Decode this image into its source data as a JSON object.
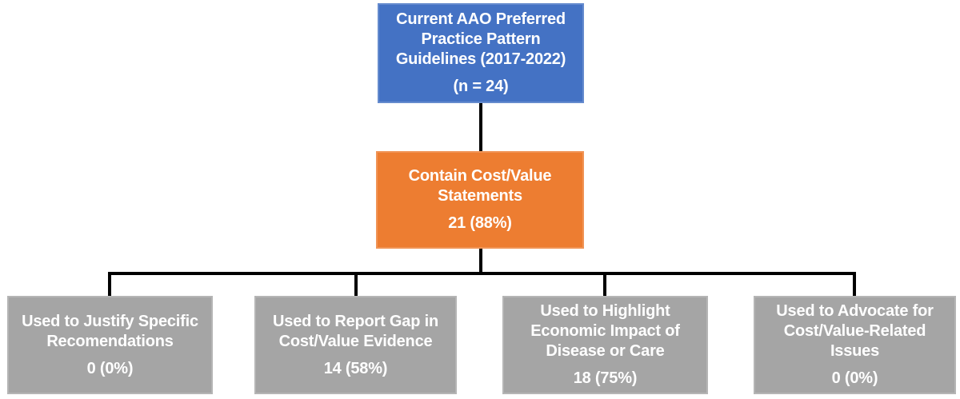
{
  "flow": {
    "root": {
      "lines": [
        "Current AAO Preferred",
        "Practice Pattern",
        "Guidelines (2017-2022)"
      ],
      "value": "(n = 24)",
      "fill": "#4472C4"
    },
    "contain": {
      "lines": [
        "Contain Cost/Value",
        "Statements"
      ],
      "value": "21 (88%)",
      "fill": "#ED7D31"
    },
    "leaves": [
      {
        "lines": [
          "Used to Justify Specific",
          "Recomendations"
        ],
        "value": "0 (0%)"
      },
      {
        "lines": [
          "Used to Report Gap in",
          "Cost/Value Evidence"
        ],
        "value": "14 (58%)"
      },
      {
        "lines": [
          "Used to Highlight",
          "Economic Impact of",
          "Disease or Care"
        ],
        "value": "18 (75%)"
      },
      {
        "lines": [
          "Used to Advocate for",
          "Cost/Value-Related",
          "Issues"
        ],
        "value": "0 (0%)"
      }
    ],
    "leaf_fill": "#A5A5A5",
    "connector_color": "#000000",
    "text_color": "#FFFFFF"
  }
}
